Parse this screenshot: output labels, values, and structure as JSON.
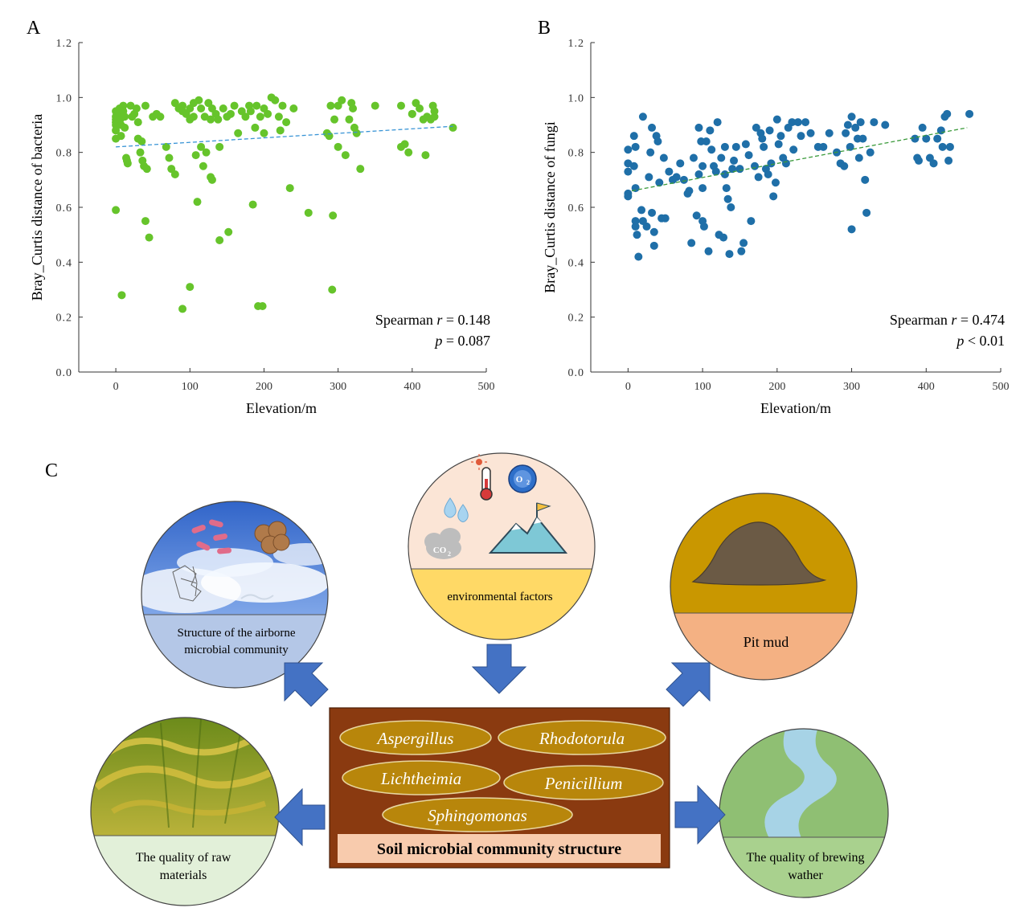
{
  "panels": {
    "a": "A",
    "b": "B",
    "c": "C"
  },
  "chart_data": [
    {
      "id": "A",
      "type": "scatter",
      "xlabel": "Elevation/m",
      "ylabel": "Bray_Curtis distance of bacteria",
      "xlim": [
        -50,
        500
      ],
      "ylim": [
        0,
        1.2
      ],
      "xticks": [
        0,
        100,
        200,
        300,
        400,
        500
      ],
      "yticks": [
        "0.0",
        "0.2",
        "0.4",
        "0.6",
        "0.8",
        "1.0",
        "1.2"
      ],
      "point_color": "#66c42b",
      "trend_color": "#3a95d6",
      "trend": {
        "x": [
          0,
          455
        ],
        "y": [
          0.82,
          0.895
        ]
      },
      "stat_label": "Spearman ",
      "stat_r": "r",
      "stat_value": " = 0.148",
      "p_sym": "p",
      "p_value": " = 0.087",
      "points": [
        [
          0,
          0.95
        ],
        [
          0,
          0.93
        ],
        [
          0,
          0.92
        ],
        [
          0,
          0.91
        ],
        [
          0,
          0.9
        ],
        [
          0,
          0.88
        ],
        [
          0,
          0.85
        ],
        [
          0,
          0.59
        ],
        [
          5,
          0.96
        ],
        [
          5,
          0.94
        ],
        [
          6,
          0.92
        ],
        [
          7,
          0.9
        ],
        [
          7,
          0.86
        ],
        [
          8,
          0.28
        ],
        [
          10,
          0.97
        ],
        [
          10,
          0.95
        ],
        [
          12,
          0.93
        ],
        [
          12,
          0.89
        ],
        [
          14,
          0.78
        ],
        [
          15,
          0.77
        ],
        [
          16,
          0.76
        ],
        [
          20,
          0.97
        ],
        [
          22,
          0.93
        ],
        [
          25,
          0.94
        ],
        [
          28,
          0.96
        ],
        [
          30,
          0.91
        ],
        [
          30,
          0.85
        ],
        [
          33,
          0.8
        ],
        [
          35,
          0.84
        ],
        [
          36,
          0.77
        ],
        [
          38,
          0.75
        ],
        [
          40,
          0.97
        ],
        [
          40,
          0.55
        ],
        [
          42,
          0.74
        ],
        [
          45,
          0.49
        ],
        [
          50,
          0.93
        ],
        [
          55,
          0.94
        ],
        [
          60,
          0.93
        ],
        [
          68,
          0.82
        ],
        [
          72,
          0.78
        ],
        [
          75,
          0.74
        ],
        [
          80,
          0.98
        ],
        [
          80,
          0.72
        ],
        [
          85,
          0.96
        ],
        [
          90,
          0.97
        ],
        [
          90,
          0.95
        ],
        [
          90,
          0.23
        ],
        [
          95,
          0.94
        ],
        [
          100,
          0.96
        ],
        [
          100,
          0.92
        ],
        [
          100,
          0.31
        ],
        [
          105,
          0.98
        ],
        [
          105,
          0.93
        ],
        [
          108,
          0.79
        ],
        [
          110,
          0.62
        ],
        [
          112,
          0.99
        ],
        [
          115,
          0.96
        ],
        [
          115,
          0.82
        ],
        [
          118,
          0.75
        ],
        [
          120,
          0.93
        ],
        [
          122,
          0.8
        ],
        [
          125,
          0.98
        ],
        [
          128,
          0.92
        ],
        [
          128,
          0.71
        ],
        [
          130,
          0.96
        ],
        [
          130,
          0.7
        ],
        [
          135,
          0.94
        ],
        [
          138,
          0.92
        ],
        [
          140,
          0.82
        ],
        [
          140,
          0.48
        ],
        [
          145,
          0.96
        ],
        [
          150,
          0.93
        ],
        [
          152,
          0.51
        ],
        [
          155,
          0.94
        ],
        [
          160,
          0.97
        ],
        [
          165,
          0.87
        ],
        [
          170,
          0.95
        ],
        [
          175,
          0.93
        ],
        [
          180,
          0.97
        ],
        [
          182,
          0.95
        ],
        [
          185,
          0.61
        ],
        [
          188,
          0.89
        ],
        [
          190,
          0.97
        ],
        [
          192,
          0.24
        ],
        [
          195,
          0.93
        ],
        [
          198,
          0.24
        ],
        [
          200,
          0.96
        ],
        [
          200,
          0.87
        ],
        [
          205,
          0.94
        ],
        [
          210,
          1.0
        ],
        [
          215,
          0.99
        ],
        [
          220,
          0.93
        ],
        [
          222,
          0.88
        ],
        [
          225,
          0.97
        ],
        [
          230,
          0.91
        ],
        [
          235,
          0.67
        ],
        [
          240,
          0.96
        ],
        [
          260,
          0.58
        ],
        [
          285,
          0.87
        ],
        [
          288,
          0.86
        ],
        [
          290,
          0.97
        ],
        [
          292,
          0.3
        ],
        [
          293,
          0.57
        ],
        [
          295,
          0.92
        ],
        [
          300,
          0.97
        ],
        [
          300,
          0.82
        ],
        [
          305,
          0.99
        ],
        [
          310,
          0.79
        ],
        [
          315,
          0.92
        ],
        [
          318,
          0.98
        ],
        [
          320,
          0.96
        ],
        [
          322,
          0.89
        ],
        [
          325,
          0.87
        ],
        [
          330,
          0.74
        ],
        [
          350,
          0.97
        ],
        [
          385,
          0.82
        ],
        [
          385,
          0.97
        ],
        [
          390,
          0.83
        ],
        [
          395,
          0.8
        ],
        [
          400,
          0.94
        ],
        [
          400,
          0.94
        ],
        [
          405,
          0.98
        ],
        [
          410,
          0.96
        ],
        [
          415,
          0.92
        ],
        [
          418,
          0.79
        ],
        [
          420,
          0.93
        ],
        [
          425,
          0.92
        ],
        [
          428,
          0.97
        ],
        [
          430,
          0.95
        ],
        [
          430,
          0.93
        ],
        [
          455,
          0.89
        ]
      ]
    },
    {
      "id": "B",
      "type": "scatter",
      "xlabel": "Elevation/m",
      "ylabel": "Bray_Curtis distance of fungi",
      "xlim": [
        -50,
        500
      ],
      "ylim": [
        0,
        1.2
      ],
      "xticks": [
        0,
        100,
        200,
        300,
        400,
        500
      ],
      "yticks": [
        "0.0",
        "0.2",
        "0.4",
        "0.6",
        "0.8",
        "1.0",
        "1.2"
      ],
      "point_color": "#1f6fa8",
      "trend_color": "#3a9a3a",
      "trend": {
        "x": [
          5,
          455
        ],
        "y": [
          0.66,
          0.89
        ]
      },
      "stat_label": "Spearman ",
      "stat_r": "r",
      "stat_value": " = 0.474",
      "p_sym": "p",
      "p_value": " < 0.01",
      "points": [
        [
          0,
          0.81
        ],
        [
          0,
          0.76
        ],
        [
          0,
          0.73
        ],
        [
          0,
          0.65
        ],
        [
          0,
          0.64
        ],
        [
          8,
          0.86
        ],
        [
          8,
          0.75
        ],
        [
          10,
          0.82
        ],
        [
          10,
          0.67
        ],
        [
          10,
          0.55
        ],
        [
          10,
          0.53
        ],
        [
          12,
          0.5
        ],
        [
          14,
          0.42
        ],
        [
          18,
          0.59
        ],
        [
          20,
          0.55
        ],
        [
          20,
          0.93
        ],
        [
          25,
          0.53
        ],
        [
          28,
          0.71
        ],
        [
          30,
          0.8
        ],
        [
          32,
          0.89
        ],
        [
          32,
          0.58
        ],
        [
          35,
          0.51
        ],
        [
          35,
          0.46
        ],
        [
          38,
          0.86
        ],
        [
          40,
          0.84
        ],
        [
          42,
          0.69
        ],
        [
          45,
          0.56
        ],
        [
          48,
          0.78
        ],
        [
          50,
          0.56
        ],
        [
          55,
          0.73
        ],
        [
          60,
          0.7
        ],
        [
          65,
          0.71
        ],
        [
          70,
          0.76
        ],
        [
          75,
          0.7
        ],
        [
          80,
          0.65
        ],
        [
          82,
          0.66
        ],
        [
          85,
          0.47
        ],
        [
          88,
          0.78
        ],
        [
          92,
          0.57
        ],
        [
          95,
          0.89
        ],
        [
          95,
          0.72
        ],
        [
          98,
          0.84
        ],
        [
          100,
          0.75
        ],
        [
          100,
          0.67
        ],
        [
          100,
          0.55
        ],
        [
          102,
          0.53
        ],
        [
          105,
          0.84
        ],
        [
          108,
          0.44
        ],
        [
          110,
          0.88
        ],
        [
          112,
          0.81
        ],
        [
          115,
          0.75
        ],
        [
          118,
          0.73
        ],
        [
          120,
          0.91
        ],
        [
          122,
          0.5
        ],
        [
          125,
          0.78
        ],
        [
          128,
          0.49
        ],
        [
          130,
          0.82
        ],
        [
          130,
          0.72
        ],
        [
          132,
          0.67
        ],
        [
          134,
          0.63
        ],
        [
          136,
          0.43
        ],
        [
          138,
          0.6
        ],
        [
          140,
          0.74
        ],
        [
          142,
          0.77
        ],
        [
          145,
          0.82
        ],
        [
          150,
          0.74
        ],
        [
          152,
          0.44
        ],
        [
          155,
          0.47
        ],
        [
          158,
          0.83
        ],
        [
          162,
          0.79
        ],
        [
          165,
          0.55
        ],
        [
          170,
          0.75
        ],
        [
          172,
          0.89
        ],
        [
          175,
          0.71
        ],
        [
          178,
          0.87
        ],
        [
          180,
          0.85
        ],
        [
          182,
          0.82
        ],
        [
          185,
          0.74
        ],
        [
          188,
          0.72
        ],
        [
          190,
          0.88
        ],
        [
          192,
          0.76
        ],
        [
          195,
          0.64
        ],
        [
          198,
          0.69
        ],
        [
          200,
          0.92
        ],
        [
          202,
          0.83
        ],
        [
          205,
          0.86
        ],
        [
          208,
          0.78
        ],
        [
          212,
          0.76
        ],
        [
          215,
          0.89
        ],
        [
          220,
          0.91
        ],
        [
          222,
          0.81
        ],
        [
          228,
          0.91
        ],
        [
          232,
          0.86
        ],
        [
          238,
          0.91
        ],
        [
          245,
          0.87
        ],
        [
          255,
          0.82
        ],
        [
          262,
          0.82
        ],
        [
          270,
          0.87
        ],
        [
          280,
          0.8
        ],
        [
          285,
          0.76
        ],
        [
          290,
          0.75
        ],
        [
          292,
          0.87
        ],
        [
          295,
          0.9
        ],
        [
          298,
          0.82
        ],
        [
          300,
          0.93
        ],
        [
          300,
          0.52
        ],
        [
          305,
          0.89
        ],
        [
          308,
          0.85
        ],
        [
          310,
          0.78
        ],
        [
          312,
          0.91
        ],
        [
          315,
          0.85
        ],
        [
          318,
          0.7
        ],
        [
          320,
          0.58
        ],
        [
          325,
          0.8
        ],
        [
          330,
          0.91
        ],
        [
          345,
          0.9
        ],
        [
          385,
          0.85
        ],
        [
          388,
          0.78
        ],
        [
          390,
          0.77
        ],
        [
          395,
          0.89
        ],
        [
          400,
          0.85
        ],
        [
          405,
          0.78
        ],
        [
          410,
          0.76
        ],
        [
          415,
          0.85
        ],
        [
          420,
          0.88
        ],
        [
          422,
          0.82
        ],
        [
          425,
          0.93
        ],
        [
          428,
          0.94
        ],
        [
          430,
          0.77
        ],
        [
          432,
          0.82
        ],
        [
          458,
          0.94
        ]
      ]
    }
  ],
  "diagram": {
    "center_title": "Soil microbial community structure",
    "microbes": [
      "Aspergillus",
      "Rhodotorula",
      "Lichtheimia",
      "Penicillium",
      "Sphingomonas"
    ],
    "airborne_label": "Structure of the airborne microbial community",
    "env_label": "environmental factors",
    "pit_label": "Pit mud",
    "raw_label": "The quality of raw materials",
    "water_label": "The quality of brewing wather",
    "o2_text": "O",
    "o2_sub": "2",
    "co2_text": "CO",
    "co2_sub": "2",
    "colors": {
      "box_brown": "#8a3a10",
      "ellipse_gold": "#b8860b",
      "arrow_blue": "#4472c4",
      "env_yellow": "#ffd966",
      "pit_orange": "#f4b183",
      "pit_gold": "#c99700",
      "air_blue": "#b4c7e7",
      "raw_green": "#e2f0d9",
      "water_green": "#a9d18e",
      "title_pink": "#f8cbad"
    }
  }
}
